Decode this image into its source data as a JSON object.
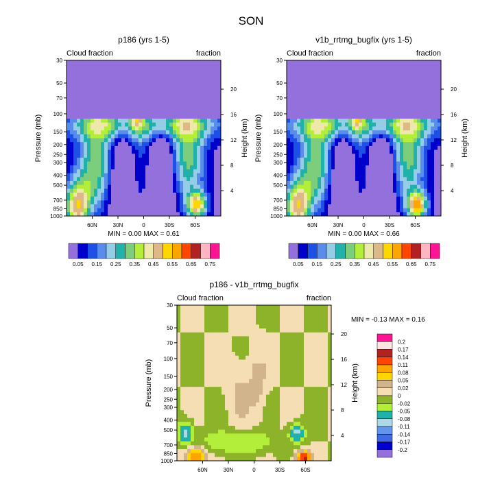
{
  "figure": {
    "title": "SON"
  },
  "palettes": {
    "cloud": [
      "#9370DB",
      "#0000CD",
      "#1E50E6",
      "#5A8CEB",
      "#96CDE6",
      "#20B2AA",
      "#7CCD7C",
      "#B3EE3A",
      "#EEE8AA",
      "#DEB887",
      "#FFD700",
      "#FFA500",
      "#FF4500",
      "#B22222",
      "#FFB6C1",
      "#FF1493"
    ],
    "diff": [
      "#9370DB",
      "#0000CD",
      "#4169E1",
      "#6495ED",
      "#ADD8E6",
      "#20B2AA",
      "#B3EE3A",
      "#8DB32A",
      "#F5DEB3",
      "#D2B48C",
      "#FFD700",
      "#FFA500",
      "#FF4500",
      "#B22222",
      "#FFE4E1",
      "#FF1493"
    ]
  },
  "chart_data": [
    {
      "type": "heatmap",
      "title": "p186 (yrs 1-5)",
      "left_label": "Cloud fraction",
      "right_label": "fraction",
      "ylabel": "Pressure (mb)",
      "ylabel_right": "Height (km)",
      "ylim": [
        1000,
        30
      ],
      "xlim": [
        90,
        -90
      ],
      "yticks": [
        "30",
        "50",
        "70",
        "100",
        "150",
        "200",
        "250",
        "300",
        "400",
        "500",
        "700",
        "850",
        "1000"
      ],
      "ytick_values": [
        30,
        50,
        70,
        100,
        150,
        200,
        250,
        300,
        400,
        500,
        700,
        850,
        1000
      ],
      "height_ticks": [
        "20",
        "16",
        "12",
        "8",
        "4"
      ],
      "height_ticks_km": [
        20,
        16,
        12,
        8,
        4
      ],
      "xticks": [
        "60N",
        "30N",
        "0",
        "30S",
        "60S"
      ],
      "xtick_values": [
        60,
        30,
        0,
        -30,
        -60
      ],
      "stats": "MIN =   0.00   MAX =   0.61",
      "colorbar_labels": [
        "0.05",
        "0.15",
        "0.25",
        "0.35",
        "0.45",
        "0.55",
        "0.65",
        "0.75"
      ],
      "max_value": 0.61
    },
    {
      "type": "heatmap",
      "title": "v1b_rrtmg_bugfix (yrs 1-5)",
      "left_label": "Cloud fraction",
      "right_label": "fraction",
      "ylabel": "Pressure (mb)",
      "ylabel_right": "Height (km)",
      "ylim": [
        1000,
        30
      ],
      "xlim": [
        90,
        -90
      ],
      "yticks": [
        "30",
        "50",
        "70",
        "100",
        "150",
        "200",
        "250",
        "300",
        "400",
        "500",
        "700",
        "850",
        "1000"
      ],
      "ytick_values": [
        30,
        50,
        70,
        100,
        150,
        200,
        250,
        300,
        400,
        500,
        700,
        850,
        1000
      ],
      "height_ticks": [
        "20",
        "16",
        "12",
        "8",
        "4"
      ],
      "height_ticks_km": [
        20,
        16,
        12,
        8,
        4
      ],
      "xticks": [
        "60N",
        "30N",
        "0",
        "30S",
        "60S"
      ],
      "xtick_values": [
        60,
        30,
        0,
        -30,
        -60
      ],
      "stats": "MIN =   0.00   MAX =   0.66",
      "colorbar_labels": [
        "0.05",
        "0.15",
        "0.25",
        "0.35",
        "0.45",
        "0.55",
        "0.65",
        "0.75"
      ],
      "max_value": 0.66
    },
    {
      "type": "heatmap",
      "title": "p186 - v1b_rrtmg_bugfix",
      "left_label": "Cloud fraction",
      "right_label": "fraction",
      "ylabel": "Pressure (mb)",
      "ylabel_right": "Height (km)",
      "ylim": [
        1000,
        30
      ],
      "xlim": [
        90,
        -90
      ],
      "yticks": [
        "30",
        "50",
        "70",
        "100",
        "150",
        "200",
        "250",
        "300",
        "400",
        "500",
        "700",
        "850",
        "1000"
      ],
      "ytick_values": [
        30,
        50,
        70,
        100,
        150,
        200,
        250,
        300,
        400,
        500,
        700,
        850,
        1000
      ],
      "height_ticks": [
        "20",
        "16",
        "12",
        "8",
        "4"
      ],
      "height_ticks_km": [
        20,
        16,
        12,
        8,
        4
      ],
      "xticks": [
        "60N",
        "30N",
        "0",
        "30S",
        "60S"
      ],
      "xtick_values": [
        60,
        30,
        0,
        -30,
        -60
      ],
      "stats": "MIN =  -0.13   MAX =   0.16",
      "colorbar_labels": [
        "0.2",
        "0.17",
        "0.14",
        "0.11",
        "0.08",
        "0.05",
        "0.02",
        "0",
        "-0.02",
        "-0.05",
        "-0.08",
        "-0.11",
        "-0.14",
        "-0.17",
        "-0.2"
      ],
      "min_value": -0.13,
      "max_value": 0.16
    }
  ]
}
